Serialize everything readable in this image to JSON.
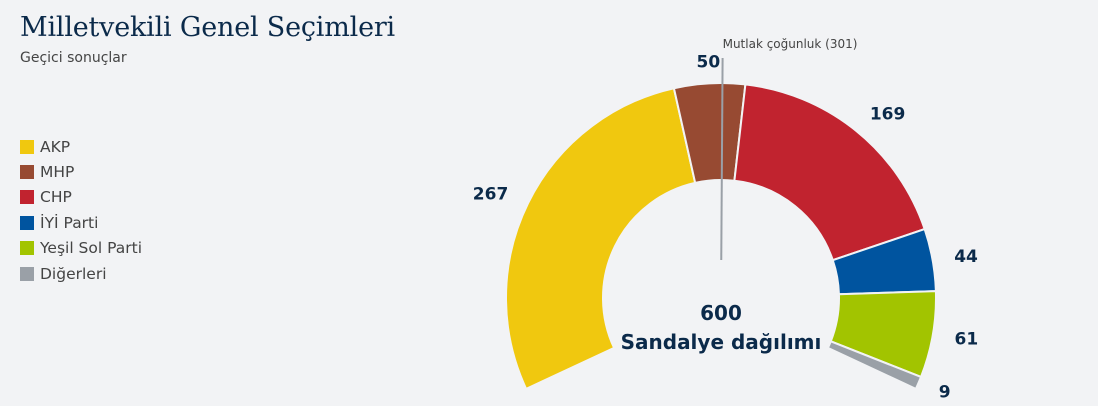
{
  "header": {
    "title": "Milletvekili Genel Seçimleri",
    "subtitle": "Geçici sonuçlar"
  },
  "chart_data": {
    "type": "pie",
    "variant": "semicircle",
    "total_seats": 600,
    "center_total": "600",
    "center_caption": "Sandalye dağılımı",
    "majority": {
      "seats": 301,
      "label": "Mutlak çoğunluk (301)"
    },
    "legend_placement": "left",
    "series": [
      {
        "name": "AKP",
        "value": 267,
        "label": "267",
        "color": "#f0c80f"
      },
      {
        "name": "MHP",
        "value": 50,
        "label": "50",
        "color": "#974a32"
      },
      {
        "name": "CHP",
        "value": 169,
        "label": "169",
        "color": "#c1232f"
      },
      {
        "name": "İYİ Parti",
        "value": 44,
        "label": "44",
        "color": "#00549f"
      },
      {
        "name": "Yeşil Sol Parti",
        "value": 61,
        "label": "61",
        "color": "#a2c400"
      },
      {
        "name": "Diğerleri",
        "value": 9,
        "label": "9",
        "color": "#9aa0a7"
      }
    ]
  }
}
